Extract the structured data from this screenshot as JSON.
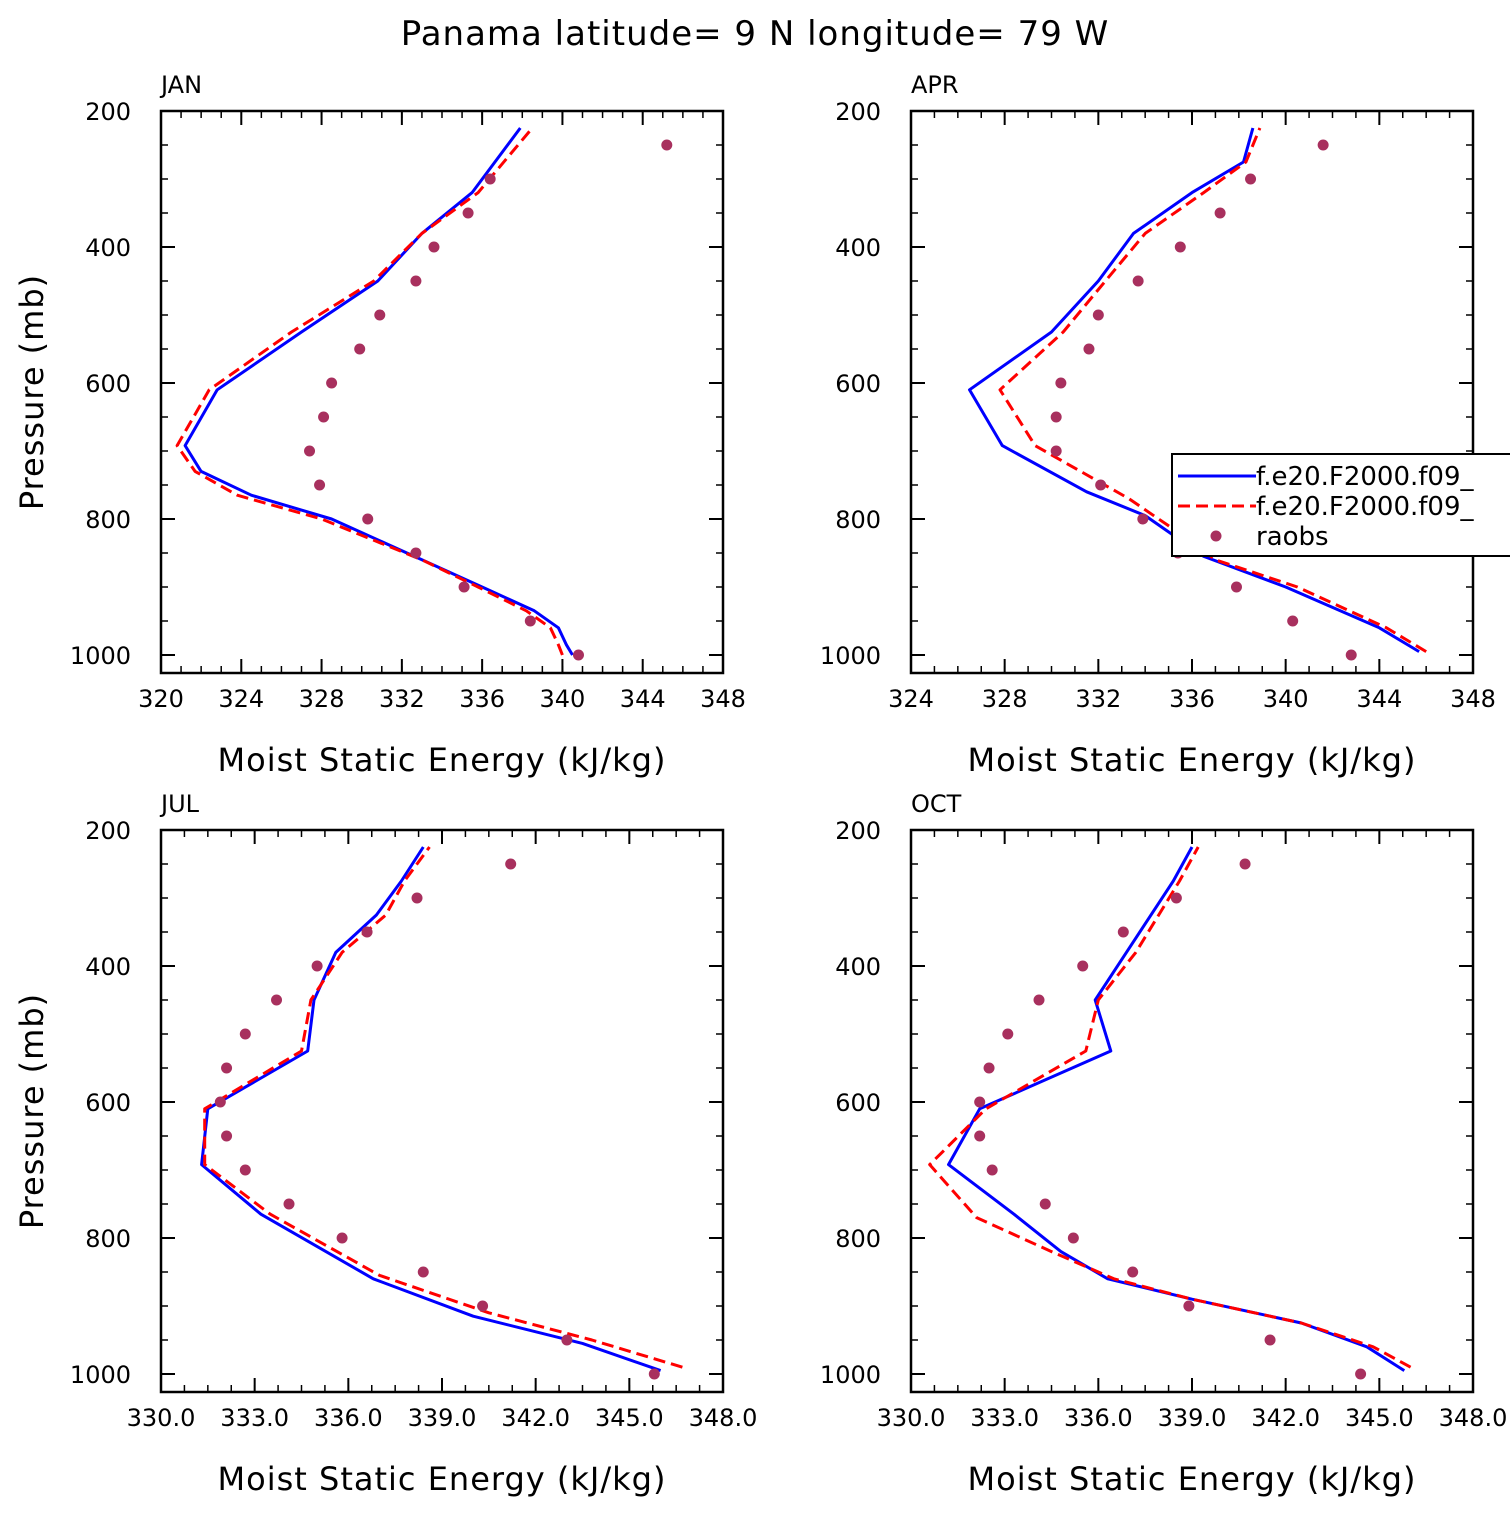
{
  "figure": {
    "title": "Panama  latitude= 9 N longitude= 79 W"
  },
  "colors": {
    "model1": "#0000ff",
    "model2": "#ff0000",
    "raobs": "#a8305e",
    "axes": "#000000"
  },
  "legend": {
    "panel": "APR",
    "placement": "right, clipped at figure edge",
    "entries": [
      {
        "label": "f.e20.F2000.f09_",
        "style": "solid",
        "color": "#0000ff"
      },
      {
        "label": "f.e20.F2000.f09_",
        "style": "dashed",
        "color": "#ff0000"
      },
      {
        "label": "raobs",
        "style": "marker",
        "color": "#a8305e"
      }
    ]
  },
  "chart_data": [
    {
      "panel": "JAN",
      "type": "line",
      "xlabel": "Moist Static Energy (kJ/kg)",
      "ylabel": "Pressure (mb)",
      "xlim": [
        320,
        348
      ],
      "ylim": [
        1000,
        200
      ],
      "y_inverted": true,
      "xticks": [
        320,
        324,
        328,
        332,
        336,
        340,
        344,
        348
      ],
      "xtick_labels": [
        "320",
        "324",
        "328",
        "332",
        "336",
        "340",
        "344",
        "348"
      ],
      "yticks": [
        200,
        400,
        600,
        800,
        1000
      ],
      "ytick_labels": [
        "200",
        "400",
        "600",
        "800",
        "1000"
      ],
      "show_ylabel": true,
      "series": [
        {
          "style": "solid",
          "color": "#0000ff",
          "x": [
            340.5,
            340.2,
            339.8,
            338.6,
            336.0,
            333.0,
            328.5,
            324.5,
            322.0,
            321.2,
            322.8,
            327.0,
            330.8,
            333.0,
            335.5,
            337.9
          ],
          "y": [
            1000,
            985,
            960,
            935,
            900,
            860,
            800,
            765,
            730,
            692,
            610,
            525,
            450,
            380,
            320,
            225
          ]
        },
        {
          "style": "dashed",
          "color": "#ff0000",
          "x": [
            340.0,
            339.8,
            339.4,
            338.2,
            335.8,
            333.0,
            328.0,
            323.8,
            321.7,
            320.8,
            322.4,
            326.5,
            330.6,
            333.0,
            335.8,
            338.5
          ],
          "y": [
            1000,
            985,
            960,
            935,
            900,
            860,
            800,
            765,
            730,
            692,
            610,
            525,
            450,
            380,
            320,
            225
          ]
        },
        {
          "style": "marker",
          "color": "#a8305e",
          "x": [
            340.8,
            338.4,
            335.1,
            332.7,
            330.3,
            327.9,
            327.4,
            328.1,
            328.5,
            329.9,
            330.9,
            332.7,
            333.6,
            335.3,
            336.4,
            345.2
          ],
          "y": [
            1000,
            950,
            900,
            850,
            800,
            750,
            700,
            650,
            600,
            550,
            500,
            450,
            400,
            350,
            300,
            250
          ]
        }
      ]
    },
    {
      "panel": "APR",
      "type": "line",
      "xlabel": "Moist Static Energy (kJ/kg)",
      "ylabel": "",
      "xlim": [
        324,
        348
      ],
      "ylim": [
        1000,
        200
      ],
      "y_inverted": true,
      "xticks": [
        324,
        328,
        332,
        336,
        340,
        344,
        348
      ],
      "xtick_labels": [
        "324",
        "328",
        "332",
        "336",
        "340",
        "344",
        "348"
      ],
      "yticks": [
        200,
        400,
        600,
        800,
        1000
      ],
      "ytick_labels": [
        "200",
        "400",
        "600",
        "800",
        "1000"
      ],
      "show_ylabel": false,
      "series": [
        {
          "style": "solid",
          "color": "#0000ff",
          "x": [
            345.7,
            344.0,
            340.0,
            336.5,
            334.0,
            331.5,
            327.9,
            326.5,
            330.0,
            332.0,
            333.5,
            336.0,
            338.2,
            338.6
          ],
          "y": [
            995,
            960,
            900,
            855,
            795,
            760,
            692,
            610,
            525,
            450,
            380,
            320,
            275,
            225
          ]
        },
        {
          "style": "dashed",
          "color": "#ff0000",
          "x": [
            346.0,
            344.3,
            340.5,
            337.0,
            335.0,
            333.3,
            329.3,
            327.8,
            330.5,
            332.3,
            334.0,
            336.5,
            338.3,
            338.9
          ],
          "y": [
            995,
            960,
            900,
            860,
            810,
            770,
            692,
            610,
            525,
            450,
            380,
            320,
            275,
            225
          ]
        },
        {
          "style": "marker",
          "color": "#a8305e",
          "x": [
            342.8,
            340.3,
            337.9,
            335.4,
            333.9,
            332.1,
            330.2,
            330.2,
            330.4,
            331.6,
            332.0,
            333.7,
            335.5,
            337.2,
            338.5,
            341.6
          ],
          "y": [
            1000,
            950,
            900,
            850,
            800,
            750,
            700,
            650,
            600,
            550,
            500,
            450,
            400,
            350,
            300,
            250
          ]
        }
      ]
    },
    {
      "panel": "JUL",
      "type": "line",
      "xlabel": "Moist Static Energy (kJ/kg)",
      "ylabel": "Pressure (mb)",
      "xlim": [
        330,
        348
      ],
      "ylim": [
        1000,
        200
      ],
      "y_inverted": true,
      "xticks": [
        330,
        333,
        336,
        339,
        342,
        345,
        348
      ],
      "xtick_labels": [
        "330.0",
        "333.0",
        "336.0",
        "339.0",
        "342.0",
        "345.0",
        "348.0"
      ],
      "yticks": [
        200,
        400,
        600,
        800,
        1000
      ],
      "ytick_labels": [
        "200",
        "400",
        "600",
        "800",
        "1000"
      ],
      "show_ylabel": true,
      "series": [
        {
          "style": "solid",
          "color": "#0000ff",
          "x": [
            346.0,
            343.5,
            340.0,
            336.8,
            333.2,
            331.3,
            331.5,
            334.7,
            334.9,
            335.6,
            336.9,
            337.7,
            338.4
          ],
          "y": [
            995,
            955,
            915,
            860,
            765,
            692,
            610,
            525,
            450,
            380,
            325,
            275,
            225
          ]
        },
        {
          "style": "dashed",
          "color": "#ff0000",
          "x": [
            346.7,
            343.8,
            340.5,
            337.0,
            333.5,
            331.4,
            331.4,
            334.5,
            334.8,
            335.8,
            337.2,
            337.8,
            338.6
          ],
          "y": [
            990,
            950,
            910,
            855,
            765,
            692,
            610,
            525,
            450,
            380,
            325,
            275,
            225
          ]
        },
        {
          "style": "marker",
          "color": "#a8305e",
          "x": [
            345.8,
            343.0,
            340.3,
            338.4,
            335.8,
            334.1,
            332.7,
            332.1,
            331.9,
            332.1,
            332.7,
            333.7,
            335.0,
            336.6,
            338.2,
            341.2
          ],
          "y": [
            1000,
            950,
            900,
            850,
            800,
            750,
            700,
            650,
            600,
            550,
            500,
            450,
            400,
            350,
            300,
            250
          ]
        }
      ]
    },
    {
      "panel": "OCT",
      "type": "line",
      "xlabel": "Moist Static Energy (kJ/kg)",
      "ylabel": "",
      "xlim": [
        330,
        348
      ],
      "ylim": [
        1000,
        200
      ],
      "y_inverted": true,
      "xticks": [
        330,
        333,
        336,
        339,
        342,
        345,
        348
      ],
      "xtick_labels": [
        "330.0",
        "333.0",
        "336.0",
        "339.0",
        "342.0",
        "345.0",
        "348.0"
      ],
      "yticks": [
        200,
        400,
        600,
        800,
        1000
      ],
      "ytick_labels": [
        "200",
        "400",
        "600",
        "800",
        "1000"
      ],
      "show_ylabel": false,
      "series": [
        {
          "style": "solid",
          "color": "#0000ff",
          "x": [
            345.8,
            344.6,
            342.5,
            339.0,
            336.3,
            334.8,
            333.3,
            331.2,
            332.2,
            336.4,
            335.9,
            336.9,
            338.4,
            339.0
          ],
          "y": [
            995,
            960,
            925,
            890,
            860,
            820,
            765,
            692,
            610,
            525,
            450,
            380,
            275,
            225
          ]
        },
        {
          "style": "dashed",
          "color": "#ff0000",
          "x": [
            346.0,
            344.8,
            342.5,
            339.0,
            336.5,
            334.5,
            332.1,
            330.6,
            332.4,
            335.6,
            336.0,
            337.2,
            338.6,
            339.2
          ],
          "y": [
            990,
            960,
            925,
            890,
            860,
            820,
            770,
            692,
            610,
            525,
            450,
            380,
            275,
            225
          ]
        },
        {
          "style": "marker",
          "color": "#a8305e",
          "x": [
            344.4,
            341.5,
            338.9,
            337.1,
            335.2,
            334.3,
            332.6,
            332.2,
            332.2,
            332.5,
            333.1,
            334.1,
            335.5,
            336.8,
            338.5,
            340.7
          ],
          "y": [
            1000,
            950,
            900,
            850,
            800,
            750,
            700,
            650,
            600,
            550,
            500,
            450,
            400,
            350,
            300,
            250
          ]
        }
      ]
    }
  ]
}
